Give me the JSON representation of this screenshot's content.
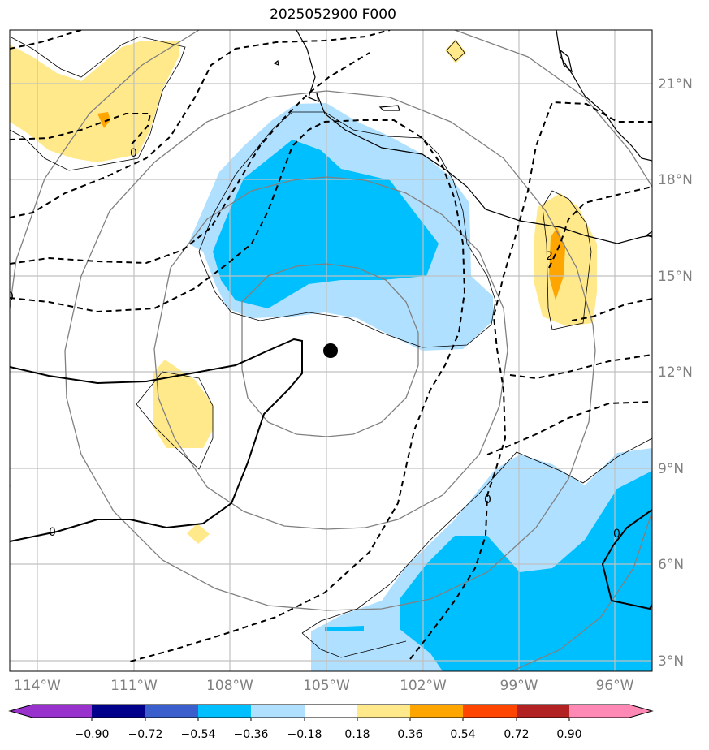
{
  "title": "2025052900 F000",
  "axes": {
    "lon_ticks": [
      "114°W",
      "111°W",
      "108°W",
      "105°W",
      "102°W",
      "99°W",
      "96°W"
    ],
    "lat_ticks": [
      "21°N",
      "18°N",
      "15°N",
      "12°N",
      "9°N",
      "6°N",
      "3°N"
    ]
  },
  "contour_labels": [
    "0",
    "0",
    "0",
    "0",
    "2",
    "0"
  ],
  "colorbar": {
    "ticks": [
      "−0.90",
      "−0.72",
      "−0.54",
      "−0.36",
      "−0.18",
      "0.18",
      "0.36",
      "0.54",
      "0.72",
      "0.90"
    ],
    "colors": [
      "#9932cc",
      "#00008b",
      "#3a5fcd",
      "#00bfff",
      "#b0e0ff",
      "#ffffff",
      "#ffe98a",
      "#ffa500",
      "#ff4500",
      "#b22222",
      "#ff88b4"
    ]
  },
  "colors": {
    "light_blue": "#b0e0ff",
    "blue": "#00bfff",
    "light_yellow": "#ffe98a",
    "orange": "#ffa500",
    "range_rings": "#808080",
    "gridlines": "#c0c0c0"
  }
}
